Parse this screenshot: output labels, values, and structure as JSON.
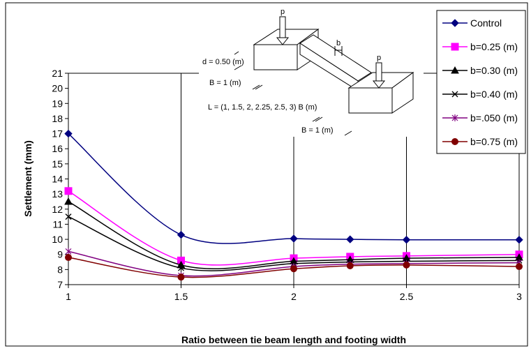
{
  "chart_data": {
    "type": "line",
    "title": "",
    "xlabel": "Ratio between tie beam length and footing width",
    "ylabel": "Settlement (mm)",
    "x": [
      1,
      1.5,
      2,
      2.25,
      2.5,
      3
    ],
    "xlim": [
      1,
      3
    ],
    "ylim": [
      7,
      21
    ],
    "x_ticks": [
      "1",
      "1.5",
      "2",
      "2.5",
      "3"
    ],
    "y_ticks": [
      "7",
      "8",
      "9",
      "10",
      "11",
      "12",
      "13",
      "14",
      "15",
      "16",
      "17",
      "18",
      "19",
      "20",
      "21"
    ],
    "grid": "vertical",
    "legend_position": "top-right",
    "series": [
      {
        "name": "Control",
        "color": "#000080",
        "marker": "diamond",
        "values": [
          17.0,
          10.3,
          10.05,
          10.0,
          9.97,
          9.97
        ]
      },
      {
        "name": "b=0.25 (m)",
        "color": "#ff00ff",
        "marker": "square",
        "values": [
          13.2,
          8.6,
          8.75,
          8.85,
          8.9,
          9.0
        ]
      },
      {
        "name": "b=0.30 (m)",
        "color": "#000000",
        "marker": "triangle",
        "values": [
          12.5,
          8.3,
          8.55,
          8.65,
          8.75,
          8.8
        ]
      },
      {
        "name": "b=0.40 (m)",
        "color": "#000000",
        "marker": "x",
        "values": [
          11.5,
          8.1,
          8.4,
          8.5,
          8.55,
          8.6
        ]
      },
      {
        "name": "b=.050 (m)",
        "color": "#800080",
        "marker": "star",
        "values": [
          9.2,
          7.6,
          8.2,
          8.35,
          8.4,
          8.45
        ]
      },
      {
        "name": "b=0.75 (m)",
        "color": "#800000",
        "marker": "circle",
        "values": [
          8.8,
          7.5,
          8.05,
          8.25,
          8.3,
          8.2
        ]
      }
    ]
  },
  "diagram": {
    "load_label": "p",
    "width_label": "b",
    "depth_label": "d = 0.50 (m)",
    "footing_width_label": "B = 1 (m)",
    "length_label": "L = (1, 1.5, 2, 2.25, 2.5, 3) B (m)",
    "footing_width_label_2": "B = 1 (m)"
  }
}
